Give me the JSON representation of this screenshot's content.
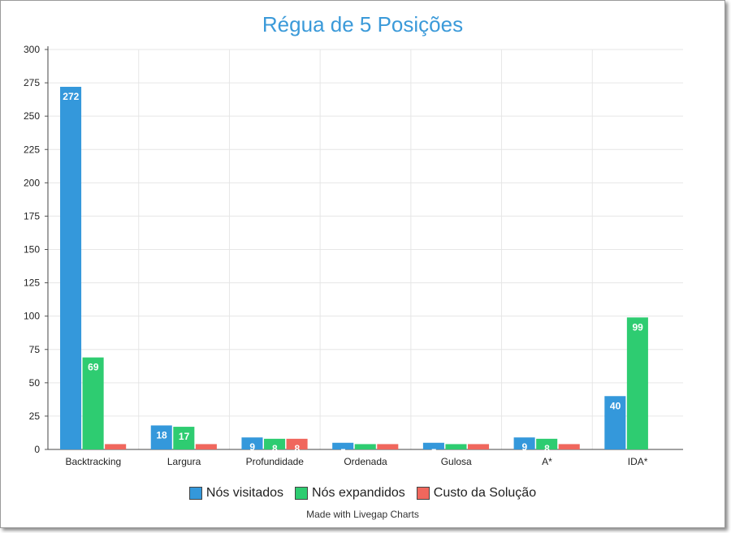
{
  "chart_data": {
    "type": "bar",
    "title": "Régua de 5 Posições",
    "categories": [
      "Backtracking",
      "Largura",
      "Profundidade",
      "Ordenada",
      "Gulosa",
      "A*",
      "IDA*"
    ],
    "series": [
      {
        "name": "Nós visitados",
        "color": "#3498db",
        "values": [
          272,
          18,
          9,
          5,
          5,
          9,
          40
        ]
      },
      {
        "name": "Nós expandidos",
        "color": "#2ecc71",
        "values": [
          69,
          17,
          8,
          4,
          4,
          8,
          99
        ]
      },
      {
        "name": "Custo da Solução",
        "color": "#f0675d",
        "values": [
          4,
          4,
          8,
          4,
          4,
          4,
          null
        ]
      }
    ],
    "ylim": [
      0,
      300
    ],
    "yticks": [
      0,
      25,
      50,
      75,
      100,
      125,
      150,
      175,
      200,
      225,
      250,
      275,
      300
    ],
    "grid": true,
    "legend_position": "bottom"
  },
  "footer": {
    "credit": "Made with Livegap Charts"
  }
}
